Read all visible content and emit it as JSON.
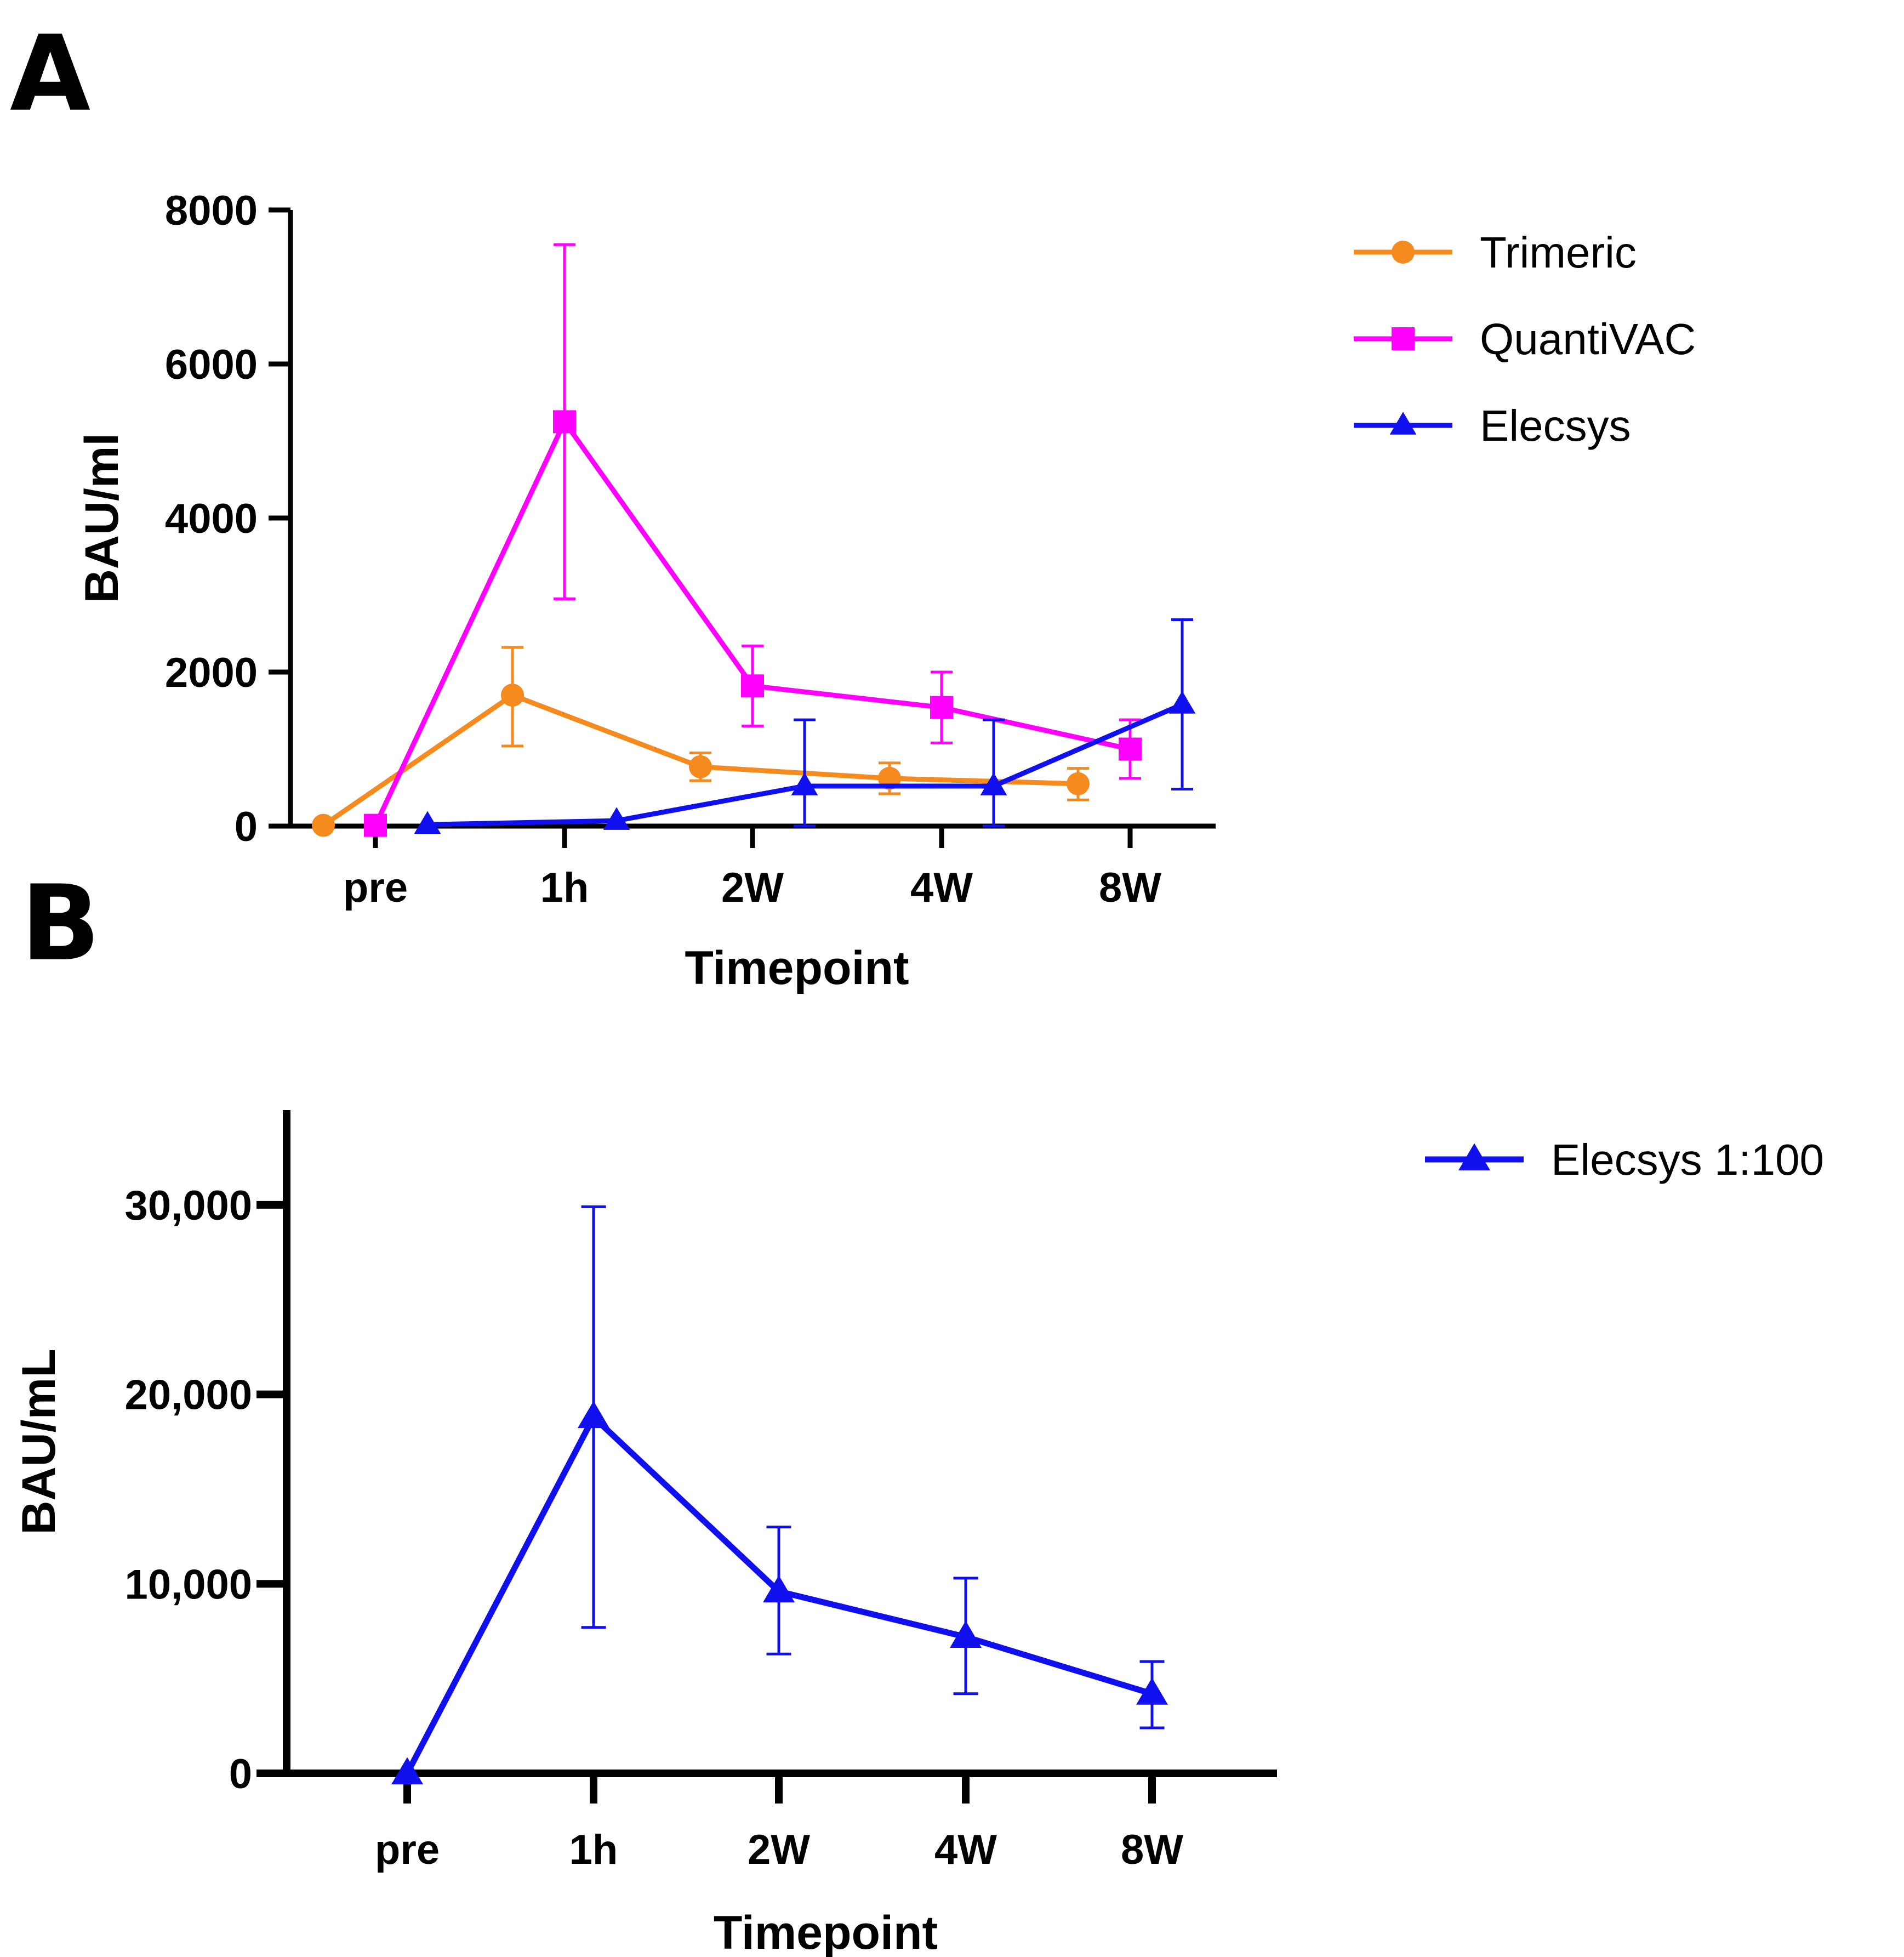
{
  "panels": {
    "a": {
      "letter": "A"
    },
    "b": {
      "letter": "B"
    }
  },
  "colors": {
    "Trimeric": "#f58a1f",
    "QuantiVAC": "#ff00ff",
    "Elecsys": "#1010ee",
    "Elecsys 1:100": "#1010ee",
    "axis": "#000000"
  },
  "chart_data": [
    {
      "type": "line",
      "panel": "A",
      "title": "",
      "xlabel": "Timepoint",
      "ylabel": "BAU/ml",
      "categories": [
        "pre",
        "1h",
        "2W",
        "4W",
        "8W"
      ],
      "ylim": [
        0,
        8000
      ],
      "yticks": [
        0,
        2000,
        4000,
        6000,
        8000
      ],
      "ytick_labels": [
        "0",
        "2000",
        "4000",
        "6000",
        "8000"
      ],
      "grid": false,
      "legend_position": "top-right, outside plot",
      "series": [
        {
          "name": "Trimeric",
          "marker": "circle",
          "values": [
            10,
            1700,
            770,
            620,
            550
          ],
          "err_upper": [
            10,
            2320,
            950,
            820,
            750
          ],
          "err_lower": [
            10,
            1040,
            590,
            420,
            340
          ]
        },
        {
          "name": "QuantiVAC",
          "marker": "square",
          "values": [
            10,
            5250,
            1820,
            1540,
            1000
          ],
          "err_upper": [
            10,
            7550,
            2340,
            2000,
            1380
          ],
          "err_lower": [
            10,
            2950,
            1300,
            1080,
            620
          ]
        },
        {
          "name": "Elecsys",
          "marker": "triangle",
          "values": [
            20,
            70,
            520,
            520,
            1580
          ],
          "err_upper": [
            20,
            100,
            1380,
            1380,
            2680
          ],
          "err_lower": [
            0,
            40,
            0,
            0,
            480
          ]
        }
      ]
    },
    {
      "type": "line",
      "panel": "B",
      "title": "",
      "xlabel": "Timepoint",
      "ylabel": "BAU/mL",
      "categories": [
        "pre",
        "1h",
        "2W",
        "4W",
        "8W"
      ],
      "ylim": [
        0,
        35000
      ],
      "yticks": [
        0,
        10000,
        20000,
        30000
      ],
      "ytick_labels": [
        "0",
        "10,000",
        "20,000",
        "30,000"
      ],
      "grid": false,
      "legend_position": "top-right, outside plot",
      "series": [
        {
          "name": "Elecsys 1:100",
          "marker": "triangle",
          "values": [
            0,
            18800,
            9600,
            7200,
            4200
          ],
          "err_upper": [
            0,
            29900,
            13000,
            10300,
            5900
          ],
          "err_lower": [
            0,
            7700,
            6300,
            4200,
            2400
          ]
        }
      ]
    }
  ]
}
